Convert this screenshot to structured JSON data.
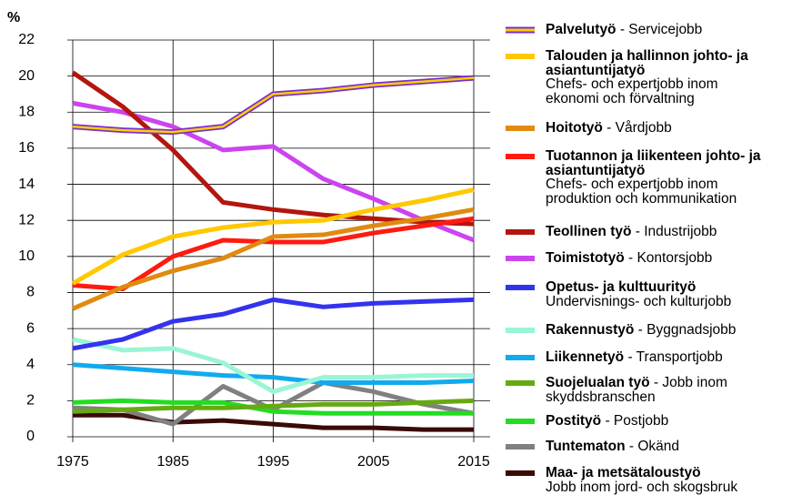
{
  "chart_data": {
    "type": "line",
    "y_axis_label": "%",
    "x": [
      1975,
      1980,
      1985,
      1990,
      1995,
      2000,
      2005,
      2010,
      2015
    ],
    "xlim": [
      1975,
      2015
    ],
    "xticks": [
      1975,
      1985,
      1995,
      2005,
      2015
    ],
    "ylim": [
      0,
      22
    ],
    "yticks": [
      0,
      2,
      4,
      6,
      8,
      10,
      12,
      14,
      16,
      18,
      20,
      22
    ],
    "grid": true,
    "legend": "right",
    "series": [
      {
        "name": "Palvelutyö",
        "label": "- Servicejobb",
        "color": "#ffcc00",
        "outline": "#7a2fd0",
        "values": [
          17.2,
          17.0,
          16.9,
          17.2,
          19.0,
          19.2,
          19.5,
          19.7,
          19.9
        ]
      },
      {
        "name": "Talouden ja hallinnon johto- ja asiantuntijatyö",
        "label": "Chefs- och expertjobb inom ekonomi och förvaltning",
        "color": "#ffc800",
        "values": [
          8.5,
          10.1,
          11.1,
          11.6,
          11.9,
          12.0,
          12.6,
          13.1,
          13.7
        ]
      },
      {
        "name": "Hoitotyö",
        "label": "- Vårdjobb",
        "color": "#e08a10",
        "values": [
          7.1,
          8.3,
          9.2,
          9.9,
          11.1,
          11.2,
          11.7,
          12.1,
          12.6
        ]
      },
      {
        "name": "Tuotannon ja liikenteen johto- ja asiantuntijatyö",
        "label": "Chefs- och expertjobb inom produktion och kommunikation",
        "color": "#ff1a10",
        "values": [
          8.4,
          8.2,
          10.0,
          10.9,
          10.8,
          10.8,
          11.3,
          11.7,
          12.1
        ]
      },
      {
        "name": "Teollinen työ",
        "label": "- Industrijobb",
        "color": "#b3160e",
        "values": [
          20.2,
          18.3,
          15.9,
          13.0,
          12.6,
          12.3,
          12.1,
          11.9,
          11.8
        ]
      },
      {
        "name": "Toimistotyö",
        "label": "- Kontorsjobb",
        "color": "#cc44ee",
        "values": [
          18.5,
          18.0,
          17.2,
          15.9,
          16.1,
          14.3,
          13.2,
          12.0,
          10.9
        ]
      },
      {
        "name": "Opetus- ja kulttuurityö",
        "label": "Undervisnings- och kulturjobb",
        "color": "#3333ee",
        "values": [
          4.9,
          5.4,
          6.4,
          6.8,
          7.6,
          7.2,
          7.4,
          7.5,
          7.6
        ]
      },
      {
        "name": "Rakennustyö",
        "label": "- Byggnadsjobb",
        "color": "#99f5d6",
        "values": [
          5.4,
          4.8,
          4.9,
          4.1,
          2.5,
          3.3,
          3.3,
          3.4,
          3.4
        ]
      },
      {
        "name": "Liikennetyö",
        "label": "- Transportjobb",
        "color": "#11aaee",
        "values": [
          4.0,
          3.8,
          3.6,
          3.4,
          3.3,
          3.0,
          3.0,
          3.0,
          3.1
        ]
      },
      {
        "name": "Suojelualan työ",
        "label": "- Jobb inom skyddsbranschen",
        "color": "#66aa11",
        "values": [
          1.4,
          1.5,
          1.6,
          1.6,
          1.7,
          1.8,
          1.8,
          1.9,
          2.0
        ]
      },
      {
        "name": "Postityö",
        "label": "- Postjobb",
        "color": "#22dd22",
        "values": [
          1.9,
          2.0,
          1.9,
          1.9,
          1.4,
          1.3,
          1.3,
          1.3,
          1.3
        ]
      },
      {
        "name": "Tuntematon",
        "label": "- Okänd",
        "color": "#808080",
        "values": [
          1.6,
          1.5,
          0.7,
          2.8,
          1.5,
          3.0,
          2.5,
          1.8,
          1.3
        ]
      },
      {
        "name": "Maa- ja metsätaloustyö",
        "label": "Jobb inom jord- och skogsbruk",
        "color": "#3a0a06",
        "values": [
          1.2,
          1.2,
          0.8,
          0.9,
          0.7,
          0.5,
          0.5,
          0.4,
          0.4
        ]
      }
    ]
  }
}
